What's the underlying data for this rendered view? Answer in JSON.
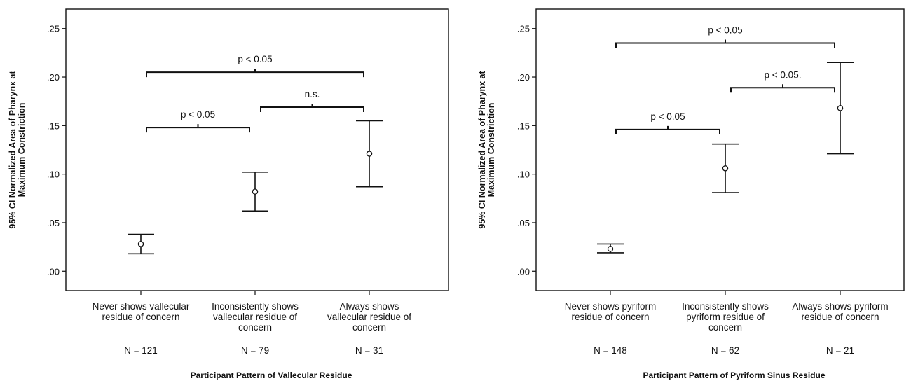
{
  "chart_data": [
    {
      "type": "errorbar",
      "ylabel": "95% CI Normalized Area of Pharynx at Maximum Constriction",
      "ylabel_lines": [
        "95% CI Normalized Area of Pharynx at",
        "Maximum Constriction"
      ],
      "xlabel": "Participant Pattern of Vallecular Residue",
      "ylim": [
        -0.02,
        0.27
      ],
      "yticks": [
        0.0,
        0.05,
        0.1,
        0.15,
        0.2,
        0.25
      ],
      "ytick_labels": [
        ".00",
        ".05",
        ".10",
        ".15",
        ".20",
        ".25"
      ],
      "categories": [
        [
          "Never shows vallecular",
          "residue of concern"
        ],
        [
          "Inconsistently shows",
          "vallecular residue of",
          "concern"
        ],
        [
          "Always shows",
          "vallecular residue of",
          "concern"
        ]
      ],
      "n_labels": [
        "N = 121",
        "N = 79",
        "N = 31"
      ],
      "means": [
        0.028,
        0.082,
        0.121
      ],
      "ci_low": [
        0.018,
        0.062,
        0.087
      ],
      "ci_high": [
        0.038,
        0.102,
        0.155
      ],
      "comparisons": [
        {
          "from": 0,
          "to": 2,
          "y": 0.205,
          "label": "p < 0.05"
        },
        {
          "from": 1,
          "to": 2,
          "y": 0.169,
          "label": "n.s."
        },
        {
          "from": 0,
          "to": 1,
          "y": 0.148,
          "label": "p < 0.05"
        }
      ]
    },
    {
      "type": "errorbar",
      "ylabel": "95% CI Normalized Area of Pharynx at Maximum Constriction",
      "ylabel_lines": [
        "95% CI Normalized Area of Pharynx at",
        "Maximum Constriction"
      ],
      "xlabel": "Participant Pattern of Pyriform Sinus Residue",
      "ylim": [
        -0.02,
        0.27
      ],
      "yticks": [
        0.0,
        0.05,
        0.1,
        0.15,
        0.2,
        0.25
      ],
      "ytick_labels": [
        ".00",
        ".05",
        ".10",
        ".15",
        ".20",
        ".25"
      ],
      "categories": [
        [
          "Never shows pyriform",
          "residue of concern"
        ],
        [
          "Inconsistently shows",
          "pyriform residue of",
          "concern"
        ],
        [
          "Always shows pyriform",
          "residue of concern"
        ]
      ],
      "n_labels": [
        "N = 148",
        "N = 62",
        "N = 21"
      ],
      "means": [
        0.023,
        0.106,
        0.168
      ],
      "ci_low": [
        0.019,
        0.081,
        0.121
      ],
      "ci_high": [
        0.028,
        0.131,
        0.215
      ],
      "comparisons": [
        {
          "from": 0,
          "to": 2,
          "y": 0.235,
          "label": "p < 0.05"
        },
        {
          "from": 1,
          "to": 2,
          "y": 0.189,
          "label": "p < 0.05."
        },
        {
          "from": 0,
          "to": 1,
          "y": 0.146,
          "label": "p < 0.05"
        }
      ]
    }
  ]
}
